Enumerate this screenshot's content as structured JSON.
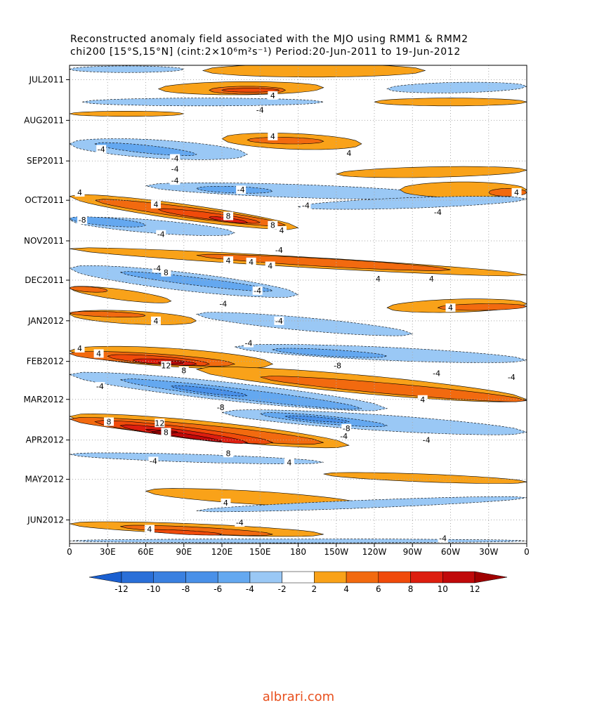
{
  "chart_data": {
    "type": "hovmoller",
    "title": "Reconstructed anomaly field associated with the MJO using RMM1 & RMM2",
    "subtitle": "chi200 [15°S,15°N] (cint:2×10⁶m²s⁻¹) Period:20-Jun-2011 to 19-Jun-2012",
    "xlim": [
      0,
      360
    ],
    "xticks": [
      0,
      {
        "value": 30,
        "label": "30E"
      },
      {
        "value": 60,
        "label": "60E"
      },
      {
        "value": 90,
        "label": "90E"
      },
      {
        "value": 120,
        "label": "120E"
      },
      {
        "value": 150,
        "label": "150E"
      },
      180,
      {
        "value": 210,
        "label": "150W"
      },
      {
        "value": 240,
        "label": "120W"
      },
      {
        "value": 270,
        "label": "90W"
      },
      {
        "value": 300,
        "label": "60W"
      },
      {
        "value": 330,
        "label": "30W"
      },
      {
        "value": 360,
        "label": "0"
      }
    ],
    "ylim": [
      0,
      365
    ],
    "yticks": [
      {
        "value": 11,
        "label": "JUL2011"
      },
      {
        "value": 42,
        "label": "AUG2011"
      },
      {
        "value": 73,
        "label": "SEP2011"
      },
      {
        "value": 103,
        "label": "OCT2011"
      },
      {
        "value": 134,
        "label": "NOV2011"
      },
      {
        "value": 164,
        "label": "DEC2011"
      },
      {
        "value": 195,
        "label": "JAN2012"
      },
      {
        "value": 226,
        "label": "FEB2012"
      },
      {
        "value": 255,
        "label": "MAR2012"
      },
      {
        "value": 286,
        "label": "APR2012"
      },
      {
        "value": 316,
        "label": "MAY2012"
      },
      {
        "value": 347,
        "label": "JUN2012"
      }
    ],
    "grid": true,
    "levels": [
      -12,
      -10,
      -8,
      -6,
      -4,
      -2,
      2,
      4,
      6,
      8,
      10,
      12
    ],
    "colors": [
      "#1a5fd0",
      "#2a6fd8",
      "#3a80e0",
      "#4990e8",
      "#64a8f0",
      "#9ac8f5",
      "#ffffff",
      "#f9a219",
      "#f26a0f",
      "#f04a0a",
      "#dd1e0f",
      "#c0090a",
      "#a00000"
    ],
    "features": [
      {
        "level": -2,
        "lon": [
          0,
          90
        ],
        "day": [
          3,
          3
        ],
        "width": 5
      },
      {
        "level": 2,
        "lon": [
          105,
          280
        ],
        "day": [
          4,
          4
        ],
        "width": 10
      },
      {
        "level": 2,
        "lon": [
          70,
          200
        ],
        "day": [
          18,
          17
        ],
        "width": 10
      },
      {
        "level": 4,
        "lon": [
          110,
          170
        ],
        "day": [
          19,
          19
        ],
        "width": 6
      },
      {
        "level": 6,
        "lon": [
          120,
          165
        ],
        "day": [
          19,
          19
        ],
        "width": 3
      },
      {
        "level": -2,
        "lon": [
          250,
          360
        ],
        "day": [
          18,
          16
        ],
        "width": 8
      },
      {
        "level": -2,
        "lon": [
          10,
          200
        ],
        "day": [
          28,
          28
        ],
        "width": 6
      },
      {
        "level": 2,
        "lon": [
          240,
          360
        ],
        "day": [
          28,
          28
        ],
        "width": 6
      },
      {
        "level": 2,
        "lon": [
          0,
          90
        ],
        "day": [
          37,
          37
        ],
        "width": 4
      },
      {
        "level": -2,
        "lon": [
          0,
          140
        ],
        "day": [
          60,
          68
        ],
        "width": 14
      },
      {
        "level": -4,
        "lon": [
          20,
          100
        ],
        "day": [
          60,
          68
        ],
        "width": 6
      },
      {
        "level": 2,
        "lon": [
          120,
          230
        ],
        "day": [
          56,
          60
        ],
        "width": 12
      },
      {
        "level": 4,
        "lon": [
          140,
          200
        ],
        "day": [
          57,
          58
        ],
        "width": 5
      },
      {
        "level": 2,
        "lon": [
          210,
          360
        ],
        "day": [
          83,
          80
        ],
        "width": 8
      },
      {
        "level": -2,
        "lon": [
          60,
          300
        ],
        "day": [
          92,
          100
        ],
        "width": 10
      },
      {
        "level": -4,
        "lon": [
          100,
          160
        ],
        "day": [
          94,
          96
        ],
        "width": 5
      },
      {
        "level": 2,
        "lon": [
          260,
          360
        ],
        "day": [
          95,
          95
        ],
        "width": 12
      },
      {
        "level": 4,
        "lon": [
          330,
          360
        ],
        "day": [
          97,
          97
        ],
        "width": 6
      },
      {
        "level": -2,
        "lon": [
          180,
          360
        ],
        "day": [
          108,
          102
        ],
        "width": 8
      },
      {
        "level": 2,
        "lon": [
          0,
          180
        ],
        "day": [
          100,
          124
        ],
        "width": 12
      },
      {
        "level": 4,
        "lon": [
          20,
          170
        ],
        "day": [
          103,
          122
        ],
        "width": 8
      },
      {
        "level": 6,
        "lon": [
          70,
          150
        ],
        "day": [
          110,
          120
        ],
        "width": 5
      },
      {
        "level": 8,
        "lon": [
          110,
          140
        ],
        "day": [
          116,
          120
        ],
        "width": 3
      },
      {
        "level": -2,
        "lon": [
          0,
          130
        ],
        "day": [
          118,
          128
        ],
        "width": 10
      },
      {
        "level": -4,
        "lon": [
          0,
          60
        ],
        "day": [
          117,
          122
        ],
        "width": 6
      },
      {
        "level": 2,
        "lon": [
          0,
          360
        ],
        "day": [
          140,
          160
        ],
        "width": 8
      },
      {
        "level": 4,
        "lon": [
          100,
          300
        ],
        "day": [
          145,
          156
        ],
        "width": 6
      },
      {
        "level": -2,
        "lon": [
          0,
          180
        ],
        "day": [
          155,
          175
        ],
        "width": 14
      },
      {
        "level": -4,
        "lon": [
          40,
          160
        ],
        "day": [
          158,
          172
        ],
        "width": 6
      },
      {
        "level": 2,
        "lon": [
          0,
          80
        ],
        "day": [
          170,
          180
        ],
        "width": 8
      },
      {
        "level": 4,
        "lon": [
          0,
          30
        ],
        "day": [
          170,
          172
        ],
        "width": 4
      },
      {
        "level": 2,
        "lon": [
          250,
          360
        ],
        "day": [
          185,
          182
        ],
        "width": 10
      },
      {
        "level": 4,
        "lon": [
          290,
          360
        ],
        "day": [
          185,
          184
        ],
        "width": 5
      },
      {
        "level": 2,
        "lon": [
          0,
          100
        ],
        "day": [
          190,
          195
        ],
        "width": 10
      },
      {
        "level": 4,
        "lon": [
          0,
          60
        ],
        "day": [
          189,
          191
        ],
        "width": 4
      },
      {
        "level": -2,
        "lon": [
          100,
          270
        ],
        "day": [
          190,
          205
        ],
        "width": 10
      },
      {
        "level": -2,
        "lon": [
          130,
          360
        ],
        "day": [
          215,
          225
        ],
        "width": 10
      },
      {
        "level": -4,
        "lon": [
          160,
          250
        ],
        "day": [
          217,
          222
        ],
        "width": 5
      },
      {
        "level": 2,
        "lon": [
          0,
          160
        ],
        "day": [
          218,
          228
        ],
        "width": 14
      },
      {
        "level": 4,
        "lon": [
          0,
          130
        ],
        "day": [
          220,
          228
        ],
        "width": 8
      },
      {
        "level": 6,
        "lon": [
          30,
          110
        ],
        "day": [
          222,
          228
        ],
        "width": 6
      },
      {
        "level": 8,
        "lon": [
          50,
          100
        ],
        "day": [
          225,
          228
        ],
        "width": 4
      },
      {
        "level": 10,
        "lon": [
          70,
          90
        ],
        "day": [
          227,
          227
        ],
        "width": 2
      },
      {
        "level": 2,
        "lon": [
          100,
          360
        ],
        "day": [
          232,
          255
        ],
        "width": 14
      },
      {
        "level": 4,
        "lon": [
          150,
          360
        ],
        "day": [
          238,
          256
        ],
        "width": 8
      },
      {
        "level": -2,
        "lon": [
          0,
          250
        ],
        "day": [
          236,
          262
        ],
        "width": 14
      },
      {
        "level": -4,
        "lon": [
          40,
          230
        ],
        "day": [
          240,
          262
        ],
        "width": 8
      },
      {
        "level": -6,
        "lon": [
          80,
          140
        ],
        "day": [
          245,
          252
        ],
        "width": 4
      },
      {
        "level": -2,
        "lon": [
          120,
          360
        ],
        "day": [
          265,
          280
        ],
        "width": 12
      },
      {
        "level": -4,
        "lon": [
          150,
          250
        ],
        "day": [
          266,
          275
        ],
        "width": 6
      },
      {
        "level": -6,
        "lon": [
          170,
          220
        ],
        "day": [
          268,
          272
        ],
        "width": 3
      },
      {
        "level": 2,
        "lon": [
          0,
          220
        ],
        "day": [
          268,
          290
        ],
        "width": 14
      },
      {
        "level": 4,
        "lon": [
          0,
          200
        ],
        "day": [
          270,
          288
        ],
        "width": 10
      },
      {
        "level": 6,
        "lon": [
          20,
          160
        ],
        "day": [
          272,
          288
        ],
        "width": 8
      },
      {
        "level": 8,
        "lon": [
          40,
          140
        ],
        "day": [
          275,
          288
        ],
        "width": 6
      },
      {
        "level": 10,
        "lon": [
          60,
          120
        ],
        "day": [
          278,
          287
        ],
        "width": 3
      },
      {
        "level": 12,
        "lon": [
          65,
          85
        ],
        "day": [
          280,
          280
        ],
        "width": 2
      },
      {
        "level": -2,
        "lon": [
          0,
          200
        ],
        "day": [
          297,
          303
        ],
        "width": 6
      },
      {
        "level": 2,
        "lon": [
          200,
          360
        ],
        "day": [
          312,
          318
        ],
        "width": 6
      },
      {
        "level": 2,
        "lon": [
          60,
          230
        ],
        "day": [
          325,
          335
        ],
        "width": 10
      },
      {
        "level": -2,
        "lon": [
          100,
          360
        ],
        "day": [
          340,
          330
        ],
        "width": 6
      },
      {
        "level": 2,
        "lon": [
          0,
          200
        ],
        "day": [
          350,
          358
        ],
        "width": 8
      },
      {
        "level": 4,
        "lon": [
          40,
          160
        ],
        "day": [
          352,
          358
        ],
        "width": 5
      },
      {
        "level": 6,
        "lon": [
          60,
          120
        ],
        "day": [
          355,
          358
        ],
        "width": 3
      },
      {
        "level": -2,
        "lon": [
          0,
          360
        ],
        "day": [
          363,
          363
        ],
        "width": 3
      }
    ],
    "contour_labels": [
      {
        "value": 4,
        "lon": 160,
        "day": 23
      },
      {
        "value": -4,
        "lon": 150,
        "day": 34
      },
      {
        "value": 4,
        "lon": 160,
        "day": 54
      },
      {
        "value": -4,
        "lon": 25,
        "day": 64
      },
      {
        "value": 4,
        "lon": 220,
        "day": 67
      },
      {
        "value": -4,
        "lon": 83,
        "day": 71
      },
      {
        "value": -4,
        "lon": 83,
        "day": 79
      },
      {
        "value": -4,
        "lon": 83,
        "day": 88
      },
      {
        "value": -4,
        "lon": 135,
        "day": 95
      },
      {
        "value": 4,
        "lon": 8,
        "day": 97
      },
      {
        "value": 4,
        "lon": 352,
        "day": 97
      },
      {
        "value": 4,
        "lon": 68,
        "day": 106
      },
      {
        "value": -4,
        "lon": 186,
        "day": 107
      },
      {
        "value": -4,
        "lon": 290,
        "day": 112
      },
      {
        "value": 8,
        "lon": 125,
        "day": 115
      },
      {
        "value": -8,
        "lon": 10,
        "day": 118
      },
      {
        "value": 8,
        "lon": 160,
        "day": 122
      },
      {
        "value": 4,
        "lon": 167,
        "day": 126
      },
      {
        "value": -4,
        "lon": 72,
        "day": 129
      },
      {
        "value": -4,
        "lon": 165,
        "day": 141
      },
      {
        "value": 4,
        "lon": 125,
        "day": 149
      },
      {
        "value": 4,
        "lon": 143,
        "day": 150
      },
      {
        "value": 4,
        "lon": 158,
        "day": 153
      },
      {
        "value": -4,
        "lon": 69,
        "day": 155
      },
      {
        "value": 8,
        "lon": 76,
        "day": 158
      },
      {
        "value": 4,
        "lon": 243,
        "day": 163
      },
      {
        "value": 4,
        "lon": 285,
        "day": 163
      },
      {
        "value": -4,
        "lon": 148,
        "day": 172
      },
      {
        "value": -4,
        "lon": 121,
        "day": 182
      },
      {
        "value": 4,
        "lon": 300,
        "day": 185
      },
      {
        "value": 4,
        "lon": 68,
        "day": 195
      },
      {
        "value": -4,
        "lon": 165,
        "day": 195
      },
      {
        "value": -4,
        "lon": 141,
        "day": 212
      },
      {
        "value": 4,
        "lon": 8,
        "day": 216
      },
      {
        "value": 4,
        "lon": 23,
        "day": 220
      },
      {
        "value": 12,
        "lon": 76,
        "day": 229
      },
      {
        "value": -8,
        "lon": 211,
        "day": 229
      },
      {
        "value": 8,
        "lon": 90,
        "day": 233
      },
      {
        "value": -4,
        "lon": 289,
        "day": 235
      },
      {
        "value": -4,
        "lon": 348,
        "day": 238
      },
      {
        "value": -4,
        "lon": 24,
        "day": 245
      },
      {
        "value": 4,
        "lon": 278,
        "day": 255
      },
      {
        "value": -8,
        "lon": 119,
        "day": 261
      },
      {
        "value": 8,
        "lon": 31,
        "day": 272
      },
      {
        "value": 12,
        "lon": 71,
        "day": 273
      },
      {
        "value": -8,
        "lon": 218,
        "day": 277
      },
      {
        "value": 8,
        "lon": 76,
        "day": 280
      },
      {
        "value": -4,
        "lon": 216,
        "day": 283
      },
      {
        "value": -4,
        "lon": 281,
        "day": 286
      },
      {
        "value": 8,
        "lon": 125,
        "day": 296
      },
      {
        "value": -4,
        "lon": 66,
        "day": 302
      },
      {
        "value": 4,
        "lon": 173,
        "day": 303
      },
      {
        "value": 4,
        "lon": 123,
        "day": 334
      },
      {
        "value": -4,
        "lon": 134,
        "day": 349
      },
      {
        "value": 4,
        "lon": 63,
        "day": 354
      },
      {
        "value": -4,
        "lon": 294,
        "day": 361
      }
    ]
  },
  "footer": "albrari.com"
}
